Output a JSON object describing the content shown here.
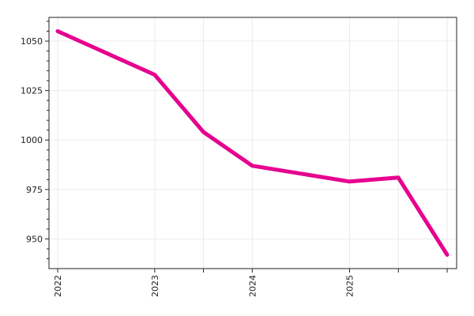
{
  "chart_data": {
    "type": "line",
    "title": "",
    "xlabel": "",
    "ylabel": "",
    "x": [
      "2022-01-01",
      "2022-12-31",
      "2023-07-02",
      "2024-01-01",
      "2024-12-31",
      "2025-07-02",
      "2026-01-01"
    ],
    "xtick_labels": [
      "2022",
      "2023",
      "",
      "2024",
      "2025",
      "",
      ""
    ],
    "series": [
      {
        "values": [
          1055,
          1033,
          1004,
          987,
          979,
          981,
          942
        ],
        "color": "#e6008e"
      }
    ],
    "ylim": [
      935,
      1062
    ],
    "yticks": [
      950,
      975,
      1000,
      1025,
      1050
    ],
    "grid": true,
    "legend": "none"
  }
}
